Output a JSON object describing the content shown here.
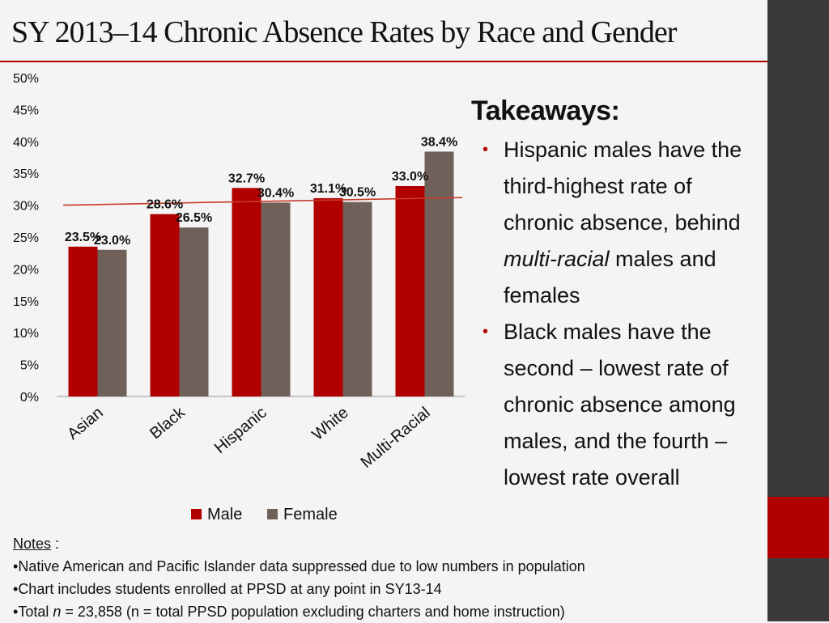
{
  "title": "SY 2013–14 Chronic Absence Rates by Race and Gender",
  "colors": {
    "male": "#b00000",
    "female": "#70605a",
    "trend": "#c83a2a",
    "accent": "#b00000",
    "band": "#3a3a3a"
  },
  "chart_data": {
    "type": "bar",
    "categories": [
      "Asian",
      "Black",
      "Hispanic",
      "White",
      "Multi-Racial"
    ],
    "series": [
      {
        "name": "Male",
        "values": [
          23.5,
          28.6,
          32.7,
          31.1,
          33.0
        ],
        "labels": [
          "23.5%",
          "28.6%",
          "32.7%",
          "31.1%",
          "33.0%"
        ]
      },
      {
        "name": "Female",
        "values": [
          23.0,
          26.5,
          30.4,
          30.5,
          38.4
        ],
        "labels": [
          "23.0%",
          "26.5%",
          "30.4%",
          "30.5%",
          "38.4%"
        ]
      }
    ],
    "ylim": [
      0,
      50
    ],
    "yticks": [
      0,
      5,
      10,
      15,
      20,
      25,
      30,
      35,
      40,
      45,
      50
    ],
    "ytick_labels": [
      "0%",
      "5%",
      "10%",
      "15%",
      "20%",
      "25%",
      "30%",
      "35%",
      "40%",
      "45%",
      "50%"
    ],
    "trendline": {
      "start": 30.0,
      "end": 31.2
    },
    "legend": "bottom",
    "title": "",
    "xlabel": "",
    "ylabel": ""
  },
  "takeaways": {
    "heading": "Takeaways:",
    "items": [
      {
        "before": "Hispanic males have the third-highest rate of chronic absence, behind ",
        "emphasis": "multi-racial",
        "after": " males and females"
      },
      {
        "before": "Black males have the second – lowest rate of chronic absence among males, and the fourth – lowest rate overall",
        "emphasis": "",
        "after": ""
      }
    ]
  },
  "notes": {
    "heading": "Notes",
    "suffix": " :",
    "items": [
      {
        "before": "Native American and Pacific Islander data suppressed due to low numbers in population",
        "emphasis": "",
        "after": ""
      },
      {
        "before": "Chart includes students enrolled at PPSD at any  point in SY13-14",
        "emphasis": "",
        "after": ""
      },
      {
        "before": "Total ",
        "emphasis": "n",
        "after": " = 23,858 (n = total PPSD population  excluding charters and home instruction)"
      }
    ]
  }
}
